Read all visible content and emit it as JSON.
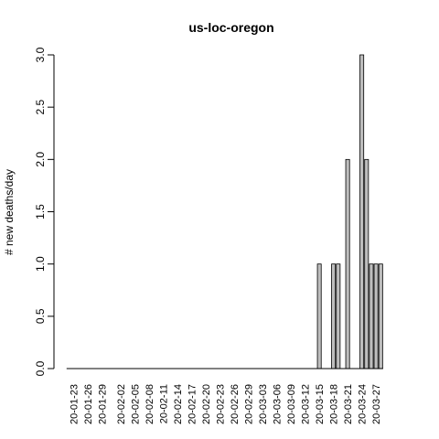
{
  "chart_data": {
    "type": "bar",
    "title": "us-loc-oregon",
    "xlabel": "",
    "ylabel": "# new deaths/day",
    "ylim": [
      0,
      3
    ],
    "yticks": [
      "0.0",
      "0.5",
      "1.0",
      "1.5",
      "2.0",
      "2.5",
      "3.0"
    ],
    "xtick_labels": [
      "20-01-23",
      "20-01-26",
      "20-01-29",
      "20-02-02",
      "20-02-05",
      "20-02-08",
      "20-02-11",
      "20-02-14",
      "20-02-17",
      "20-02-20",
      "20-02-23",
      "20-02-26",
      "20-02-29",
      "20-03-03",
      "20-03-06",
      "20-03-09",
      "20-03-12",
      "20-03-15",
      "20-03-18",
      "20-03-21",
      "20-03-24",
      "20-03-27"
    ],
    "categories": [
      "20-01-22",
      "20-01-23",
      "20-01-24",
      "20-01-25",
      "20-01-26",
      "20-01-27",
      "20-01-28",
      "20-01-29",
      "20-01-30",
      "20-01-31",
      "20-02-01",
      "20-02-02",
      "20-02-03",
      "20-02-04",
      "20-02-05",
      "20-02-06",
      "20-02-07",
      "20-02-08",
      "20-02-09",
      "20-02-10",
      "20-02-11",
      "20-02-12",
      "20-02-13",
      "20-02-14",
      "20-02-15",
      "20-02-16",
      "20-02-17",
      "20-02-18",
      "20-02-19",
      "20-02-20",
      "20-02-21",
      "20-02-22",
      "20-02-23",
      "20-02-24",
      "20-02-25",
      "20-02-26",
      "20-02-27",
      "20-02-28",
      "20-02-29",
      "20-03-01",
      "20-03-02",
      "20-03-03",
      "20-03-04",
      "20-03-05",
      "20-03-06",
      "20-03-07",
      "20-03-08",
      "20-03-09",
      "20-03-10",
      "20-03-11",
      "20-03-12",
      "20-03-13",
      "20-03-14",
      "20-03-15",
      "20-03-16",
      "20-03-17",
      "20-03-18",
      "20-03-19",
      "20-03-20",
      "20-03-21",
      "20-03-22",
      "20-03-23",
      "20-03-24",
      "20-03-25",
      "20-03-26",
      "20-03-27",
      "20-03-28"
    ],
    "values": [
      0,
      0,
      0,
      0,
      0,
      0,
      0,
      0,
      0,
      0,
      0,
      0,
      0,
      0,
      0,
      0,
      0,
      0,
      0,
      0,
      0,
      0,
      0,
      0,
      0,
      0,
      0,
      0,
      0,
      0,
      0,
      0,
      0,
      0,
      0,
      0,
      0,
      0,
      0,
      0,
      0,
      0,
      0,
      0,
      0,
      0,
      0,
      0,
      0,
      0,
      0,
      0,
      0,
      1,
      0,
      0,
      1,
      1,
      0,
      2,
      0,
      0,
      3,
      2,
      1,
      1,
      1
    ],
    "bar_color": "#bebebe",
    "grid": false
  }
}
